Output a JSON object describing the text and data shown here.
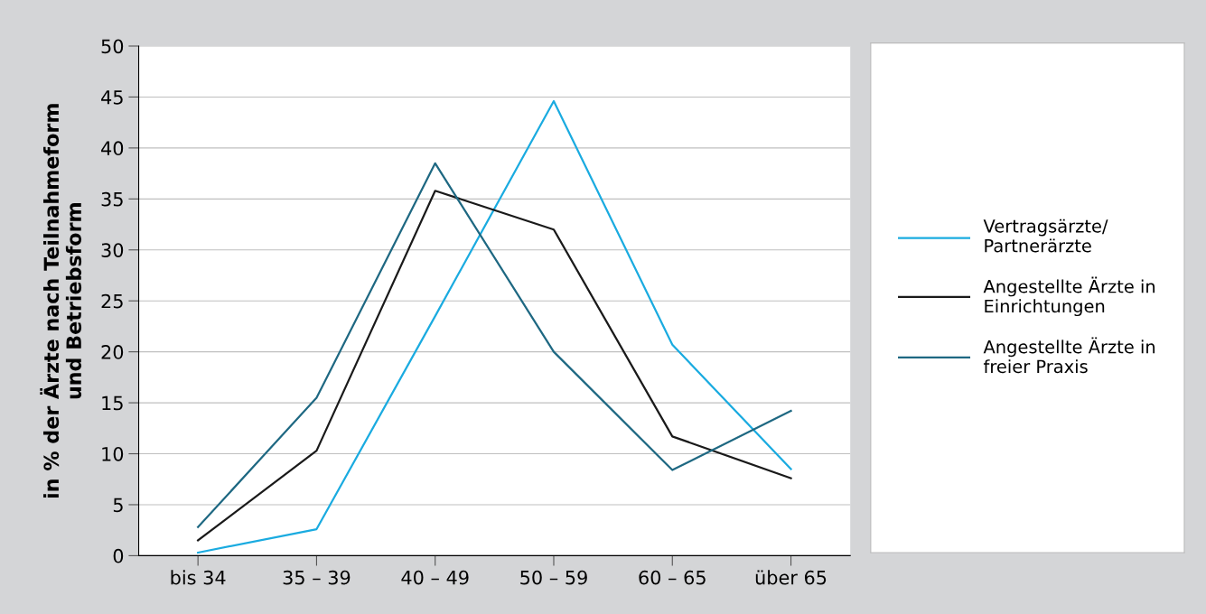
{
  "chart_data": {
    "type": "line",
    "ylabel": "in % der Ärzte nach Teilnahmeform\nund Betriebsform",
    "categories": [
      "bis 34",
      "35 – 39",
      "40 – 49",
      "50 – 59",
      "60 – 65",
      "über 65"
    ],
    "series": [
      {
        "name": "Vertragsärzte/\nPartnerärzte",
        "color": "#1aabe0",
        "values": [
          0.3,
          2.6,
          23.5,
          44.6,
          20.7,
          8.5
        ]
      },
      {
        "name": "Angestellte Ärzte in\nEinrichtungen",
        "color": "#1a1a1a",
        "values": [
          1.5,
          10.3,
          35.8,
          32.0,
          11.7,
          7.6
        ]
      },
      {
        "name": "Angestellte Ärzte in\nfreier Praxis",
        "color": "#1e6882",
        "values": [
          2.8,
          15.5,
          38.5,
          20.0,
          8.4,
          14.2
        ]
      }
    ],
    "ylim": [
      0,
      50
    ],
    "yticks": [
      0,
      5,
      10,
      15,
      20,
      25,
      30,
      35,
      40,
      45,
      50
    ],
    "grid": "y",
    "legend": "right",
    "marker": "none",
    "line_style": "solid"
  }
}
